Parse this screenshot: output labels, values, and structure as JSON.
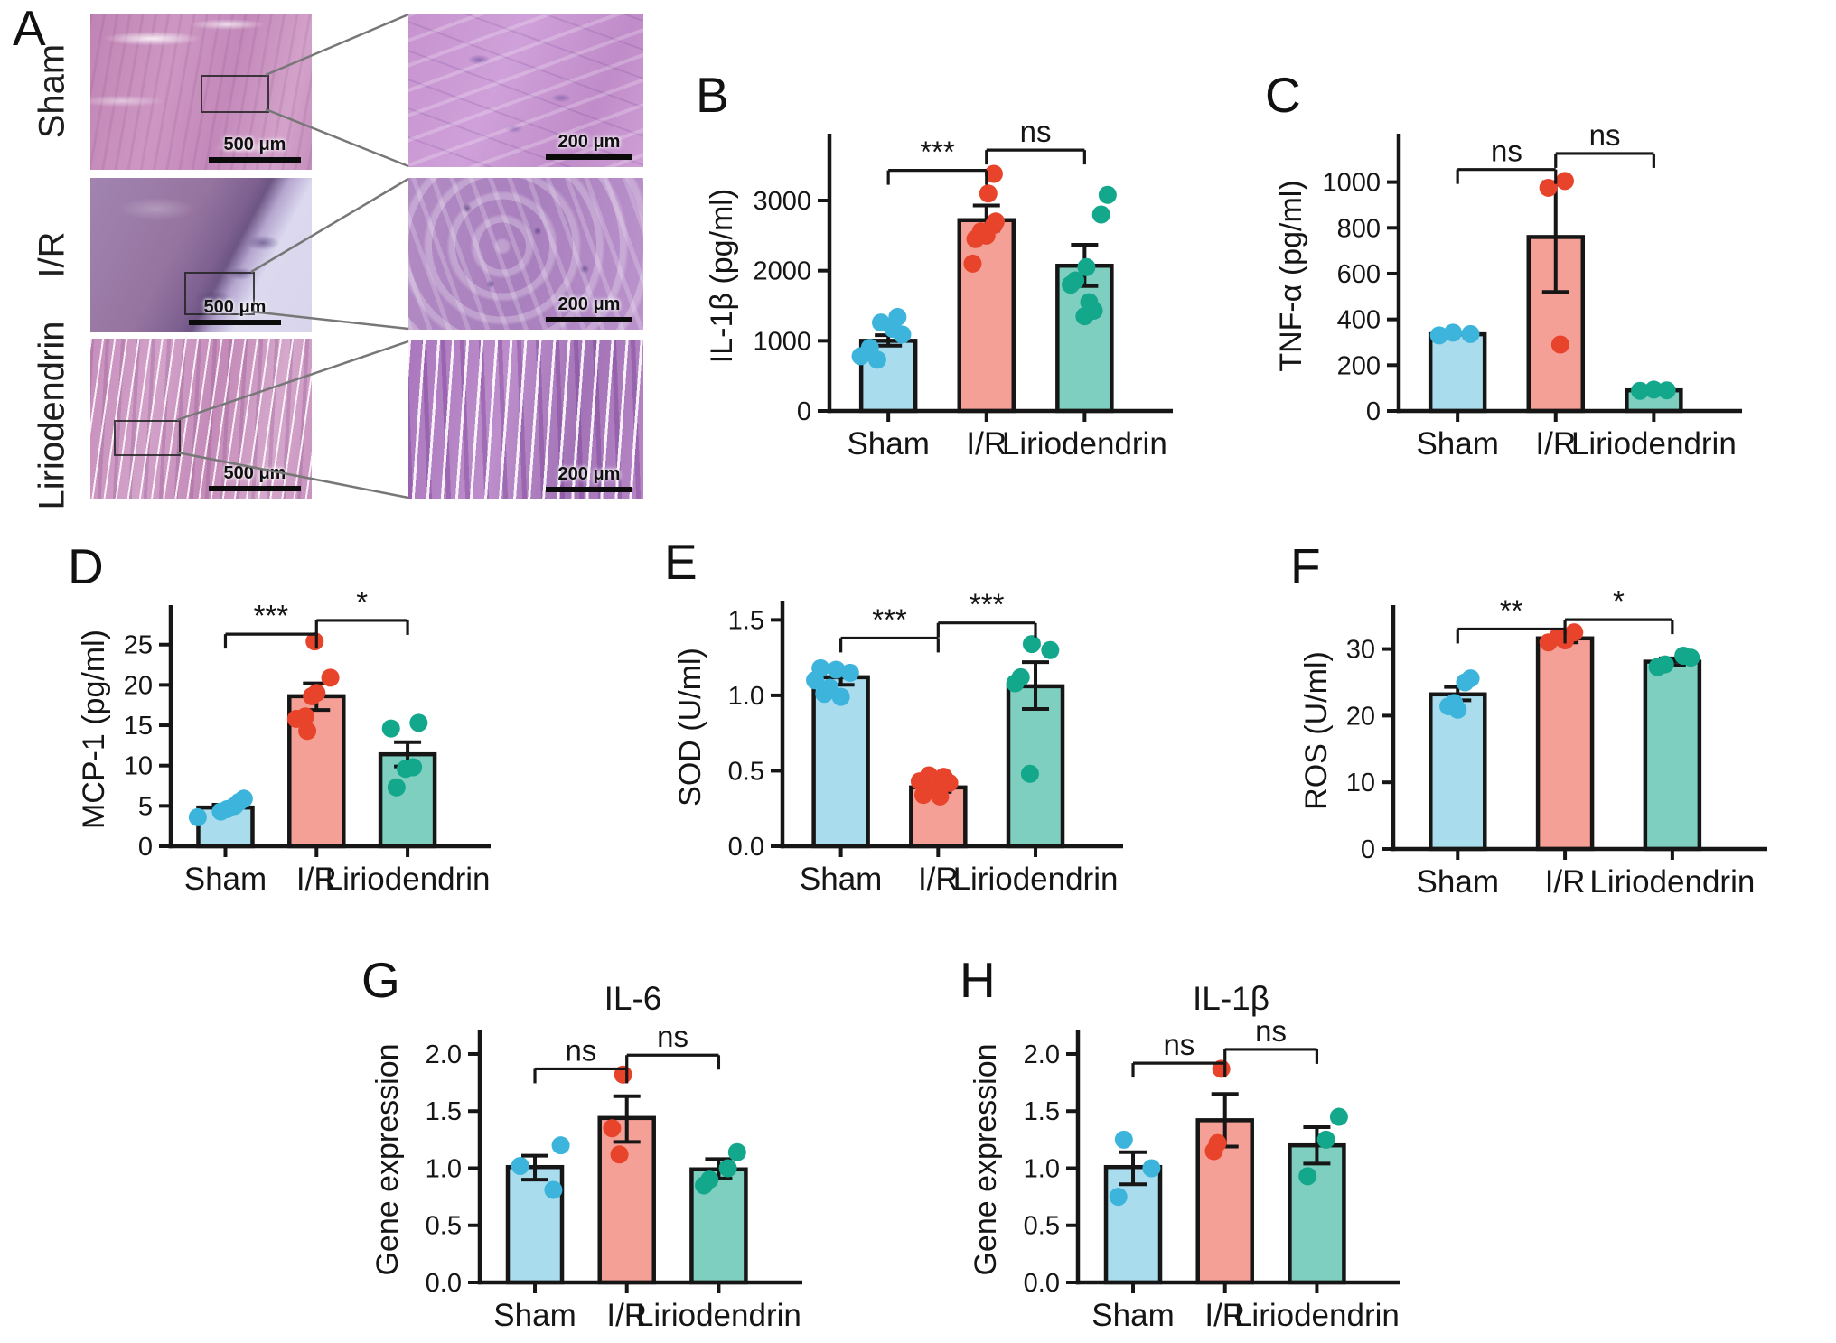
{
  "palette": {
    "bar_fills": [
      "#a9dcec",
      "#f5a096",
      "#7fcfc0"
    ],
    "dot_colors": [
      "#3cb4dc",
      "#e8432b",
      "#13a78c"
    ],
    "axis_color": "#161616"
  },
  "panel_a": {
    "letter": "A",
    "rows": [
      {
        "label": "Sham",
        "scale_left": "500 μm",
        "scale_right": "200 μm"
      },
      {
        "label": "I/R",
        "scale_left": "500 μm",
        "scale_right": "200 μm"
      },
      {
        "label": "Liriodendrin",
        "scale_left": "500 μm",
        "scale_right": "200 μm"
      }
    ]
  },
  "chart_data": [
    {
      "panel": "B",
      "type": "bar",
      "ylabel": "IL-1β (pg/ml)",
      "categories": [
        "Sham",
        "I/R",
        "Liriodendrin"
      ],
      "values": [
        1000,
        2720,
        2070
      ],
      "errors": [
        [
          930,
          1080
        ],
        [
          2570,
          2930
        ],
        [
          1780,
          2370
        ]
      ],
      "points": [
        [
          [
            -0.12,
            730
          ],
          [
            -0.3,
            780
          ],
          [
            -0.2,
            900
          ],
          [
            0.15,
            1090
          ],
          [
            0.05,
            1170
          ],
          [
            -0.08,
            1260
          ],
          [
            0.1,
            1340
          ]
        ],
        [
          [
            -0.15,
            2100
          ],
          [
            -0.12,
            2450
          ],
          [
            0.0,
            2500
          ],
          [
            -0.06,
            2560
          ],
          [
            0.08,
            2650
          ],
          [
            0.1,
            2700
          ],
          [
            0.02,
            3100
          ],
          [
            0.08,
            3380
          ]
        ],
        [
          [
            0.0,
            1350
          ],
          [
            0.1,
            1430
          ],
          [
            0.05,
            1550
          ],
          [
            -0.15,
            1800
          ],
          [
            -0.1,
            1860
          ],
          [
            0.02,
            2050
          ],
          [
            0.18,
            2800
          ],
          [
            0.25,
            3080
          ]
        ]
      ],
      "yticks": [
        0,
        1000,
        2000,
        3000
      ],
      "tick_decimals": 0,
      "ylim": [
        0,
        3850
      ],
      "brackets": [
        {
          "from": 0,
          "to": 1,
          "label": "***",
          "y": 3430
        },
        {
          "from": 1,
          "to": 2,
          "label": "ns",
          "y": 3720
        }
      ]
    },
    {
      "panel": "C",
      "type": "bar",
      "ylabel": "TNF-α (pg/ml)",
      "categories": [
        "Sham",
        "I/R",
        "Liriodendrin"
      ],
      "values": [
        335,
        760,
        90
      ],
      "errors": [
        null,
        [
          520,
          1000
        ],
        null
      ],
      "points": [
        [
          [
            -0.2,
            330
          ],
          [
            -0.05,
            342
          ],
          [
            0.14,
            336
          ]
        ],
        [
          [
            -0.08,
            975
          ],
          [
            0.1,
            1005
          ],
          [
            0.05,
            290
          ]
        ],
        [
          [
            -0.15,
            88
          ],
          [
            0.0,
            93
          ],
          [
            0.14,
            90
          ]
        ]
      ],
      "yticks": [
        0,
        200,
        400,
        600,
        800,
        1000
      ],
      "tick_decimals": 0,
      "ylim": [
        0,
        1180
      ],
      "brackets": [
        {
          "from": 0,
          "to": 1,
          "label": "ns",
          "y": 1055
        },
        {
          "from": 1,
          "to": 2,
          "label": "ns",
          "y": 1125
        }
      ]
    },
    {
      "panel": "D",
      "type": "bar",
      "ylabel": "MCP-1 (pg/ml)",
      "categories": [
        "Sham",
        "I/R",
        "Liriodendrin"
      ],
      "values": [
        4.8,
        18.6,
        11.4
      ],
      "errors": [
        [
          4.5,
          5.15
        ],
        [
          16.9,
          20.2
        ],
        [
          9.9,
          12.9
        ]
      ],
      "points": [
        [
          [
            -0.3,
            3.6
          ],
          [
            -0.05,
            4.3
          ],
          [
            0.02,
            4.6
          ],
          [
            0.1,
            5.0
          ],
          [
            0.15,
            5.5
          ],
          [
            0.2,
            5.9
          ]
        ],
        [
          [
            -0.1,
            14.3
          ],
          [
            -0.22,
            15.8
          ],
          [
            -0.12,
            16.1
          ],
          [
            -0.05,
            18.6
          ],
          [
            0.0,
            19.0
          ],
          [
            0.15,
            20.9
          ],
          [
            -0.02,
            25.4
          ]
        ],
        [
          [
            -0.12,
            7.3
          ],
          [
            -0.02,
            9.6
          ],
          [
            0.06,
            9.8
          ],
          [
            -0.18,
            14.6
          ],
          [
            0.12,
            15.3
          ]
        ]
      ],
      "yticks": [
        0,
        5,
        10,
        15,
        20,
        25
      ],
      "tick_decimals": 0,
      "ylim": [
        0,
        29
      ],
      "brackets": [
        {
          "from": 0,
          "to": 1,
          "label": "***",
          "y": 26.3
        },
        {
          "from": 1,
          "to": 2,
          "label": "*",
          "y": 28.0
        }
      ]
    },
    {
      "panel": "E",
      "type": "bar",
      "ylabel": "SOD (U/ml)",
      "categories": [
        "Sham",
        "I/R",
        "Liriodendrin"
      ],
      "values": [
        1.12,
        0.39,
        1.06
      ],
      "errors": [
        [
          1.07,
          1.17
        ],
        [
          0.36,
          0.42
        ],
        [
          0.91,
          1.22
        ]
      ],
      "points": [
        [
          [
            -0.22,
            1.18
          ],
          [
            -0.05,
            1.17
          ],
          [
            0.1,
            1.15
          ],
          [
            -0.28,
            1.1
          ],
          [
            -0.12,
            1.05
          ],
          [
            -0.18,
            1.01
          ],
          [
            0.0,
            0.99
          ]
        ],
        [
          [
            -0.1,
            0.47
          ],
          [
            0.06,
            0.46
          ],
          [
            -0.2,
            0.43
          ],
          [
            0.12,
            0.42
          ],
          [
            -0.04,
            0.37
          ],
          [
            -0.16,
            0.34
          ],
          [
            0.02,
            0.33
          ]
        ],
        [
          [
            -0.04,
            1.34
          ],
          [
            0.16,
            1.3
          ],
          [
            -0.16,
            1.12
          ],
          [
            -0.22,
            1.08
          ],
          [
            -0.06,
            0.48
          ]
        ]
      ],
      "yticks": [
        0.0,
        0.5,
        1.0,
        1.5
      ],
      "tick_decimals": 1,
      "ylim": [
        0,
        1.58
      ],
      "brackets": [
        {
          "from": 0,
          "to": 1,
          "label": "***",
          "y": 1.38
        },
        {
          "from": 1,
          "to": 2,
          "label": "***",
          "y": 1.48
        }
      ]
    },
    {
      "panel": "F",
      "type": "bar",
      "ylabel": "ROS (U/ml)",
      "categories": [
        "Sham",
        "I/R",
        "Liriodendrin"
      ],
      "values": [
        23.2,
        31.6,
        28.1
      ],
      "errors": [
        [
          22.3,
          24.3
        ],
        [
          31.0,
          32.2
        ],
        [
          27.5,
          28.6
        ]
      ],
      "points": [
        [
          [
            0.14,
            25.6
          ],
          [
            0.08,
            25.0
          ],
          [
            -0.04,
            21.9
          ],
          [
            -0.1,
            21.4
          ],
          [
            0.0,
            20.9
          ]
        ],
        [
          [
            0.1,
            32.5
          ],
          [
            -0.08,
            31.8
          ],
          [
            0.0,
            31.3
          ],
          [
            -0.18,
            31.0
          ]
        ],
        [
          [
            0.12,
            29.0
          ],
          [
            0.2,
            28.7
          ],
          [
            -0.08,
            27.7
          ],
          [
            -0.16,
            27.3
          ]
        ]
      ],
      "yticks": [
        0,
        10,
        20,
        30
      ],
      "tick_decimals": 0,
      "ylim": [
        0,
        35.5
      ],
      "brackets": [
        {
          "from": 0,
          "to": 1,
          "label": "**",
          "y": 33.0
        },
        {
          "from": 1,
          "to": 2,
          "label": "*",
          "y": 34.4
        }
      ]
    },
    {
      "panel": "G",
      "type": "bar",
      "title": "IL-6",
      "ylabel": "Gene expression",
      "categories": [
        "Sham",
        "I/R",
        "Liriodendrin"
      ],
      "values": [
        1.01,
        1.44,
        0.99
      ],
      "errors": [
        [
          0.9,
          1.11
        ],
        [
          1.23,
          1.63
        ],
        [
          0.91,
          1.08
        ]
      ],
      "points": [
        [
          [
            0.28,
            1.2
          ],
          [
            -0.16,
            1.02
          ],
          [
            0.2,
            0.81
          ]
        ],
        [
          [
            -0.04,
            1.82
          ],
          [
            -0.16,
            1.35
          ],
          [
            -0.08,
            1.12
          ]
        ],
        [
          [
            0.2,
            1.14
          ],
          [
            0.1,
            1.0
          ],
          [
            -0.1,
            0.9
          ],
          [
            -0.16,
            0.85
          ]
        ]
      ],
      "yticks": [
        0.0,
        0.5,
        1.0,
        1.5,
        2.0
      ],
      "tick_decimals": 1,
      "ylim": [
        0,
        2.15
      ],
      "brackets": [
        {
          "from": 0,
          "to": 1,
          "label": "ns",
          "y": 1.87
        },
        {
          "from": 1,
          "to": 2,
          "label": "ns",
          "y": 1.99
        }
      ]
    },
    {
      "panel": "H",
      "type": "bar",
      "title": "IL-1β",
      "ylabel": "Gene expression",
      "categories": [
        "Sham",
        "I/R",
        "Liriodendrin"
      ],
      "values": [
        1.01,
        1.42,
        1.2
      ],
      "errors": [
        [
          0.86,
          1.14
        ],
        [
          1.19,
          1.65
        ],
        [
          1.04,
          1.36
        ]
      ],
      "points": [
        [
          [
            -0.1,
            1.25
          ],
          [
            0.2,
            1.0
          ],
          [
            -0.16,
            0.75
          ]
        ],
        [
          [
            -0.04,
            1.87
          ],
          [
            -0.08,
            1.22
          ],
          [
            -0.12,
            1.15
          ]
        ],
        [
          [
            0.24,
            1.45
          ],
          [
            0.1,
            1.25
          ],
          [
            -0.1,
            0.93
          ]
        ]
      ],
      "yticks": [
        0.0,
        0.5,
        1.0,
        1.5,
        2.0
      ],
      "tick_decimals": 1,
      "ylim": [
        0,
        2.15
      ],
      "brackets": [
        {
          "from": 0,
          "to": 1,
          "label": "ns",
          "y": 1.92
        },
        {
          "from": 1,
          "to": 2,
          "label": "ns",
          "y": 2.04
        }
      ]
    }
  ]
}
